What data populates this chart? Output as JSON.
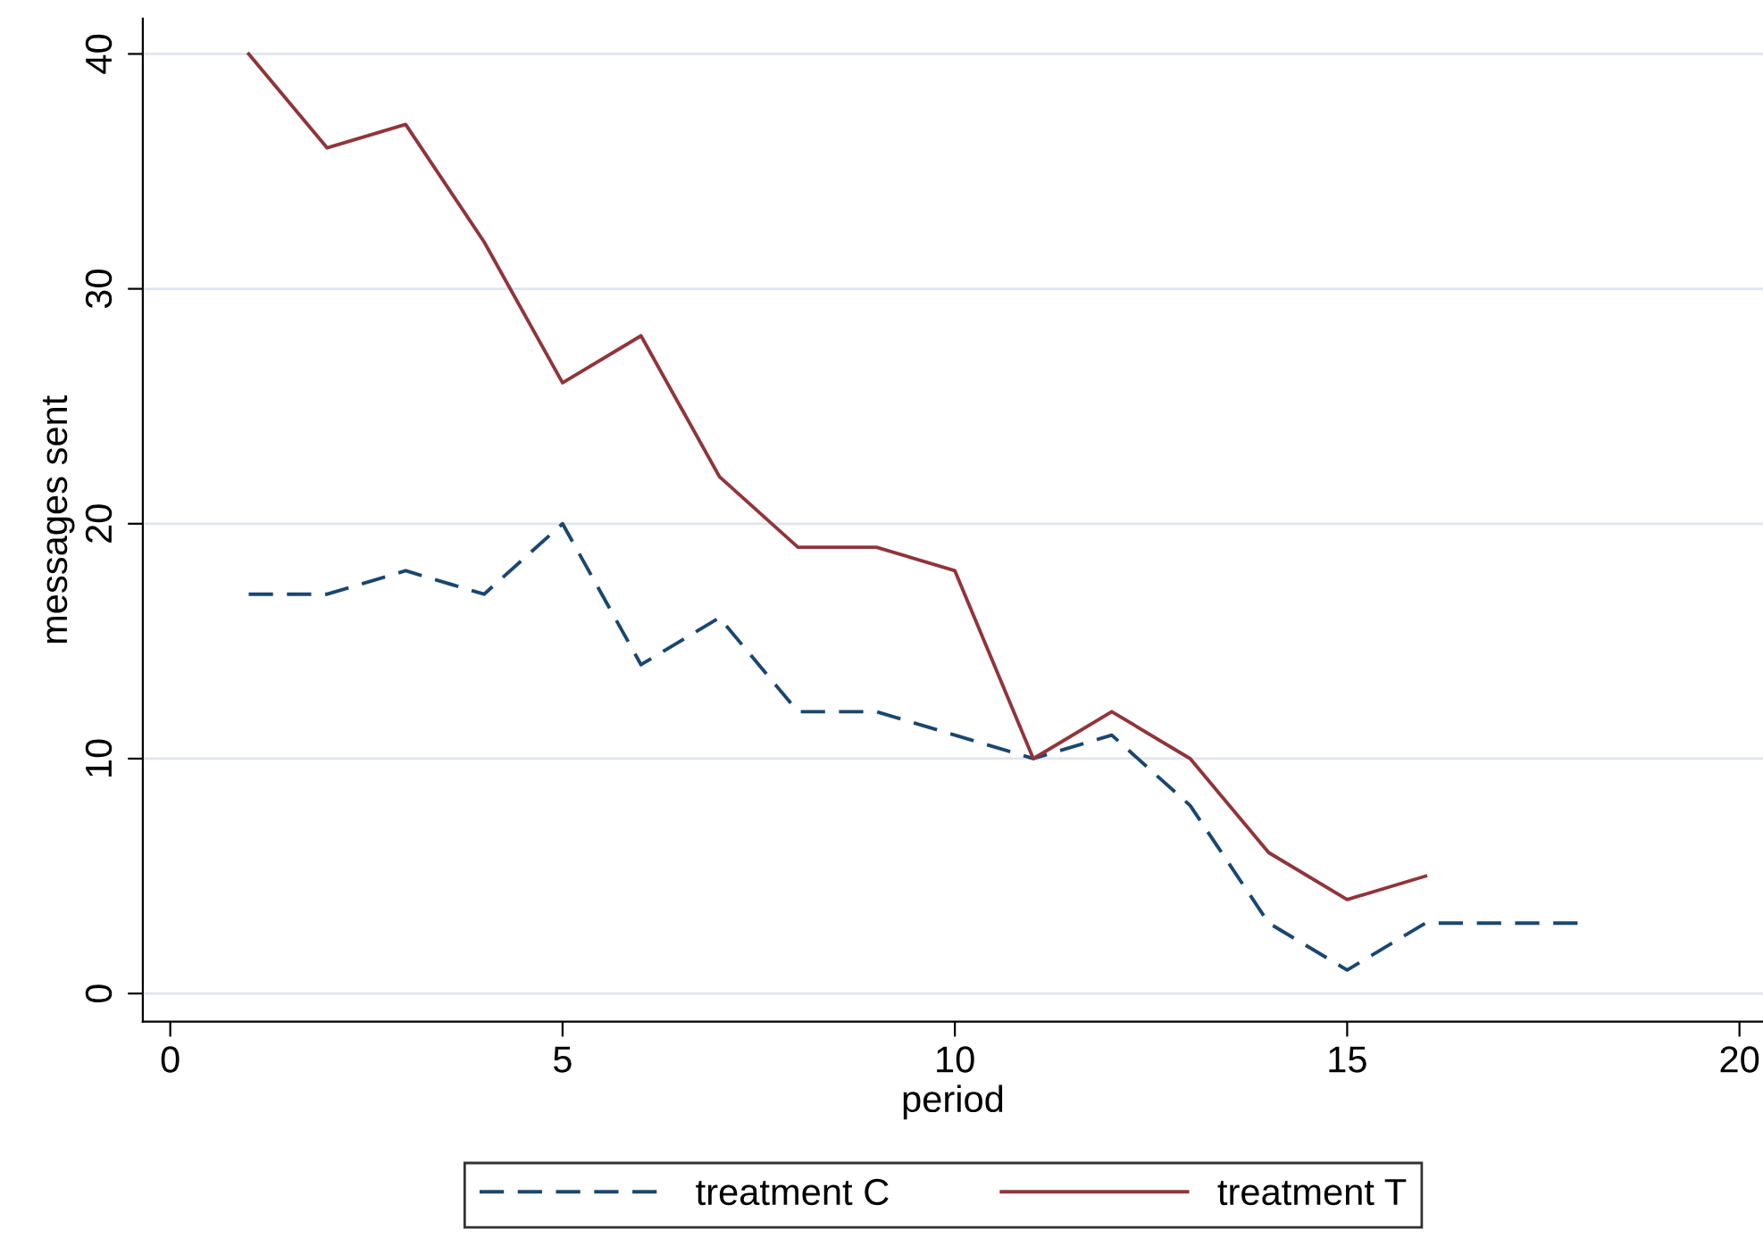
{
  "chart_data": {
    "type": "line",
    "xlabel": "period",
    "ylabel": "messages sent",
    "x": [
      1,
      2,
      3,
      4,
      5,
      6,
      7,
      8,
      9,
      10,
      11,
      12,
      13,
      14,
      15,
      16,
      17,
      18
    ],
    "series": [
      {
        "name": "treatment C",
        "color": "#1a476f",
        "line_style": "dashed",
        "values": [
          17,
          17,
          18,
          17,
          20,
          14,
          16,
          12,
          12,
          11,
          10,
          11,
          8,
          3,
          1,
          3,
          3,
          3
        ]
      },
      {
        "name": "treatment T",
        "color": "#90353b",
        "line_style": "solid",
        "values": [
          40,
          36,
          37,
          32,
          26,
          28,
          22,
          19,
          19,
          18,
          10,
          12,
          10,
          6,
          4,
          5,
          null,
          null
        ]
      }
    ],
    "xlim": [
      -0.35,
      20.3
    ],
    "xticks": [
      0,
      5,
      10,
      15,
      20
    ],
    "ylim": [
      -1.2,
      41.5
    ],
    "yticks": [
      0,
      10,
      20,
      30,
      40
    ],
    "grid": "y",
    "legend": "bottom",
    "marker": "none"
  }
}
